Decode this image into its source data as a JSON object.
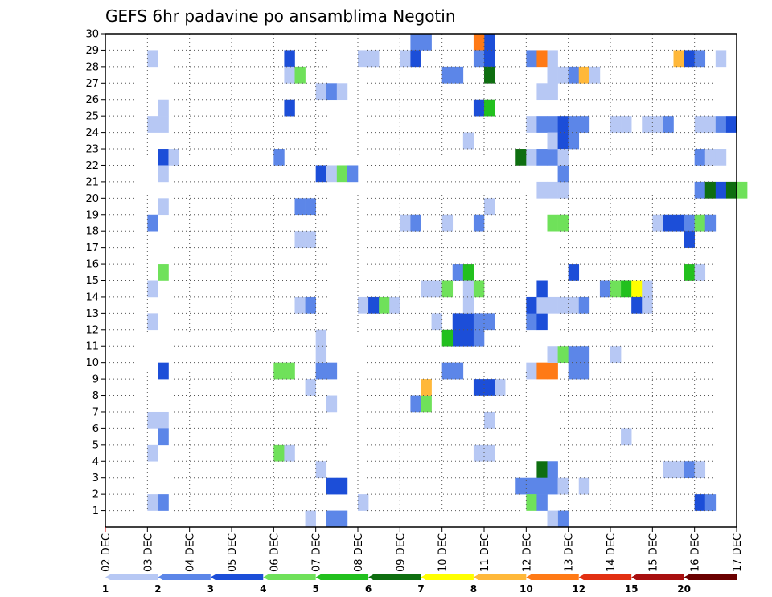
{
  "chart_data": {
    "type": "heatmap",
    "title": "GEFS 6hr padavine po ansamblima Negotin",
    "xlabel": "",
    "ylabel": "",
    "x_tick_labels": [
      "02 DEC",
      "03 DEC",
      "04 DEC",
      "05 DEC",
      "06 DEC",
      "07 DEC",
      "08 DEC",
      "09 DEC",
      "10 DEC",
      "11 DEC",
      "12 DEC",
      "13 DEC",
      "14 DEC",
      "15 DEC",
      "16 DEC",
      "17 DEC"
    ],
    "y_tick_labels": [
      "1",
      "2",
      "3",
      "4",
      "5",
      "6",
      "7",
      "8",
      "9",
      "10",
      "11",
      "12",
      "13",
      "14",
      "15",
      "16",
      "17",
      "18",
      "19",
      "20",
      "21",
      "22",
      "23",
      "24",
      "25",
      "26",
      "27",
      "28",
      "29",
      "30"
    ],
    "x_range_days": [
      0,
      15
    ],
    "y_range_members": [
      0,
      30
    ],
    "grid": true,
    "colorbar": {
      "position": "bottom",
      "labels": [
        "1",
        "2",
        "3",
        "4",
        "5",
        "6",
        "7",
        "8",
        "10",
        "12",
        "15",
        "20"
      ],
      "colors": [
        "#b7c8f4",
        "#5c86e8",
        "#1c4ed8",
        "#6fe15a",
        "#22c01e",
        "#0e6e10",
        "#ffff00",
        "#ffb83a",
        "#ff7a16",
        "#e23012",
        "#a80f0f",
        "#6a0000"
      ]
    },
    "cells": [
      [
        1.0,
        28,
        0
      ],
      [
        1.0,
        24,
        0
      ],
      [
        1.25,
        24,
        0
      ],
      [
        1.25,
        25,
        0
      ],
      [
        1.25,
        22,
        2
      ],
      [
        1.5,
        22,
        0
      ],
      [
        1.25,
        21,
        0
      ],
      [
        1.25,
        19,
        0
      ],
      [
        1.0,
        18,
        1
      ],
      [
        1.25,
        15,
        3
      ],
      [
        1.0,
        14,
        0
      ],
      [
        1.0,
        12,
        0
      ],
      [
        1.25,
        9,
        2
      ],
      [
        1.0,
        6,
        0
      ],
      [
        1.25,
        6,
        0
      ],
      [
        1.25,
        5,
        1
      ],
      [
        1.0,
        4,
        0
      ],
      [
        1.0,
        1,
        0
      ],
      [
        1.25,
        1,
        1
      ],
      [
        4.25,
        28,
        2
      ],
      [
        4.25,
        27,
        0
      ],
      [
        4.5,
        27,
        3
      ],
      [
        4.25,
        25,
        2
      ],
      [
        4.0,
        22,
        1
      ],
      [
        4.5,
        19,
        1
      ],
      [
        4.75,
        19,
        1
      ],
      [
        4.5,
        17,
        0
      ],
      [
        4.75,
        17,
        0
      ],
      [
        4.5,
        13,
        0
      ],
      [
        4.75,
        13,
        1
      ],
      [
        4.0,
        9,
        3
      ],
      [
        4.25,
        9,
        3
      ],
      [
        4.75,
        8,
        0
      ],
      [
        4.0,
        4,
        3
      ],
      [
        4.25,
        4,
        0
      ],
      [
        5.0,
        26,
        0
      ],
      [
        5.25,
        26,
        1
      ],
      [
        5.5,
        26,
        0
      ],
      [
        5.0,
        21,
        2
      ],
      [
        5.25,
        21,
        0
      ],
      [
        5.5,
        21,
        3
      ],
      [
        5.75,
        21,
        1
      ],
      [
        5.0,
        9,
        1
      ],
      [
        5.25,
        9,
        1
      ],
      [
        5.0,
        10,
        0
      ],
      [
        5.0,
        11,
        0
      ],
      [
        5.25,
        7,
        0
      ],
      [
        5.0,
        3,
        0
      ],
      [
        5.25,
        2,
        2
      ],
      [
        5.5,
        2,
        2
      ],
      [
        5.25,
        0,
        1
      ],
      [
        5.5,
        0,
        1
      ],
      [
        4.75,
        0,
        0
      ],
      [
        6.0,
        28,
        0
      ],
      [
        6.25,
        28,
        0
      ],
      [
        6.0,
        13,
        0
      ],
      [
        6.25,
        13,
        2
      ],
      [
        6.5,
        13,
        3
      ],
      [
        6.75,
        13,
        0
      ],
      [
        6.0,
        1,
        0
      ],
      [
        7.25,
        30,
        1
      ],
      [
        7.25,
        29,
        1
      ],
      [
        7.5,
        29,
        1
      ],
      [
        7.0,
        28,
        0
      ],
      [
        7.25,
        28,
        2
      ],
      [
        7.0,
        18,
        0
      ],
      [
        7.25,
        18,
        1
      ],
      [
        7.5,
        14,
        0
      ],
      [
        7.75,
        14,
        0
      ],
      [
        7.75,
        12,
        0
      ],
      [
        7.25,
        7,
        1
      ],
      [
        7.5,
        7,
        3
      ],
      [
        7.5,
        8,
        7
      ],
      [
        8.0,
        27,
        1
      ],
      [
        8.25,
        27,
        1
      ],
      [
        8.0,
        14,
        3
      ],
      [
        8.25,
        15,
        1
      ],
      [
        8.5,
        15,
        4
      ],
      [
        8.0,
        18,
        0
      ],
      [
        8.25,
        12,
        2
      ],
      [
        8.5,
        12,
        2
      ],
      [
        8.25,
        11,
        2
      ],
      [
        8.5,
        11,
        2
      ],
      [
        8.0,
        11,
        4
      ],
      [
        8.75,
        11,
        1
      ],
      [
        8.0,
        9,
        1
      ],
      [
        8.25,
        9,
        1
      ],
      [
        8.5,
        23,
        0
      ],
      [
        8.5,
        13,
        0
      ],
      [
        8.5,
        14,
        0
      ],
      [
        8.75,
        14,
        3
      ],
      [
        8.75,
        18,
        1
      ],
      [
        8.75,
        12,
        1
      ],
      [
        9.0,
        12,
        1
      ],
      [
        8.25,
        30,
        0
      ],
      [
        8.5,
        30,
        0
      ],
      [
        8.75,
        30,
        1
      ],
      [
        9.0,
        30,
        0
      ],
      [
        9.0,
        29,
        2
      ],
      [
        8.75,
        29,
        8
      ],
      [
        8.75,
        28,
        1
      ],
      [
        9.0,
        28,
        2
      ],
      [
        9.0,
        27,
        5
      ],
      [
        8.75,
        25,
        2
      ],
      [
        9.0,
        25,
        4
      ],
      [
        9.0,
        19,
        0
      ],
      [
        9.0,
        8,
        2
      ],
      [
        8.75,
        8,
        2
      ],
      [
        9.25,
        8,
        0
      ],
      [
        9.0,
        6,
        0
      ],
      [
        8.75,
        4,
        0
      ],
      [
        9.0,
        4,
        0
      ],
      [
        10.0,
        28,
        1
      ],
      [
        10.25,
        28,
        8
      ],
      [
        10.5,
        28,
        0
      ],
      [
        10.25,
        26,
        0
      ],
      [
        10.5,
        26,
        0
      ],
      [
        10.0,
        24,
        0
      ],
      [
        10.25,
        24,
        1
      ],
      [
        9.75,
        22,
        5
      ],
      [
        10.0,
        22,
        0
      ],
      [
        10.25,
        22,
        1
      ],
      [
        10.5,
        22,
        1
      ],
      [
        10.25,
        20,
        0
      ],
      [
        10.5,
        20,
        0
      ],
      [
        10.75,
        20,
        0
      ],
      [
        10.75,
        21,
        1
      ],
      [
        10.0,
        12,
        1
      ],
      [
        10.25,
        12,
        2
      ],
      [
        10.0,
        13,
        2
      ],
      [
        10.25,
        13,
        0
      ],
      [
        10.5,
        13,
        0
      ],
      [
        10.75,
        13,
        0
      ],
      [
        10.25,
        14,
        2
      ],
      [
        10.0,
        9,
        0
      ],
      [
        10.25,
        9,
        8
      ],
      [
        10.5,
        9,
        8
      ],
      [
        10.5,
        10,
        0
      ],
      [
        10.75,
        10,
        3
      ],
      [
        10.25,
        3,
        5
      ],
      [
        10.5,
        3,
        1
      ],
      [
        9.75,
        2,
        1
      ],
      [
        10.0,
        2,
        1
      ],
      [
        10.25,
        2,
        1
      ],
      [
        10.5,
        2,
        1
      ],
      [
        10.75,
        2,
        0
      ],
      [
        10.0,
        1,
        3
      ],
      [
        10.25,
        1,
        1
      ],
      [
        10.75,
        0,
        1
      ],
      [
        10.5,
        0,
        0
      ],
      [
        10.5,
        27,
        0
      ],
      [
        10.75,
        27,
        0
      ],
      [
        11.0,
        27,
        1
      ],
      [
        11.25,
        27,
        7
      ],
      [
        11.5,
        27,
        0
      ],
      [
        10.5,
        24,
        1
      ],
      [
        10.75,
        24,
        2
      ],
      [
        11.0,
        24,
        1
      ],
      [
        11.25,
        24,
        1
      ],
      [
        10.5,
        23,
        0
      ],
      [
        10.75,
        23,
        2
      ],
      [
        11.0,
        23,
        1
      ],
      [
        10.75,
        22,
        0
      ],
      [
        10.5,
        18,
        3
      ],
      [
        10.75,
        18,
        3
      ],
      [
        11.0,
        15,
        2
      ],
      [
        11.0,
        13,
        0
      ],
      [
        11.25,
        13,
        1
      ],
      [
        11.0,
        10,
        1
      ],
      [
        11.25,
        10,
        1
      ],
      [
        11.0,
        9,
        1
      ],
      [
        11.25,
        9,
        1
      ],
      [
        11.25,
        2,
        0
      ],
      [
        12.0,
        24,
        0
      ],
      [
        12.25,
        24,
        0
      ],
      [
        12.75,
        24,
        0
      ],
      [
        12.0,
        10,
        0
      ],
      [
        11.75,
        14,
        1
      ],
      [
        12.0,
        14,
        3
      ],
      [
        12.25,
        14,
        4
      ],
      [
        12.5,
        14,
        6
      ],
      [
        12.75,
        14,
        0
      ],
      [
        12.5,
        13,
        2
      ],
      [
        12.75,
        13,
        0
      ],
      [
        12.25,
        5,
        0
      ],
      [
        13.0,
        24,
        0
      ],
      [
        13.25,
        24,
        1
      ],
      [
        13.0,
        18,
        0
      ],
      [
        13.25,
        18,
        2
      ],
      [
        13.5,
        18,
        2
      ],
      [
        13.75,
        18,
        1
      ],
      [
        14.0,
        18,
        3
      ],
      [
        14.25,
        18,
        1
      ],
      [
        13.75,
        17,
        2
      ],
      [
        13.75,
        15,
        4
      ],
      [
        14.0,
        15,
        0
      ],
      [
        13.5,
        28,
        7
      ],
      [
        13.75,
        28,
        2
      ],
      [
        14.0,
        28,
        1
      ],
      [
        14.5,
        28,
        0
      ],
      [
        14.0,
        24,
        0
      ],
      [
        14.25,
        24,
        0
      ],
      [
        14.5,
        24,
        1
      ],
      [
        14.75,
        24,
        2
      ],
      [
        14.0,
        22,
        1
      ],
      [
        14.25,
        22,
        0
      ],
      [
        14.5,
        22,
        0
      ],
      [
        14.0,
        20,
        1
      ],
      [
        14.25,
        20,
        5
      ],
      [
        14.5,
        20,
        2
      ],
      [
        14.75,
        20,
        5
      ],
      [
        15.0,
        20,
        3
      ],
      [
        13.25,
        3,
        0
      ],
      [
        13.5,
        3,
        0
      ],
      [
        13.75,
        3,
        1
      ],
      [
        14.0,
        3,
        0
      ],
      [
        14.0,
        1,
        2
      ],
      [
        14.25,
        1,
        1
      ]
    ]
  }
}
